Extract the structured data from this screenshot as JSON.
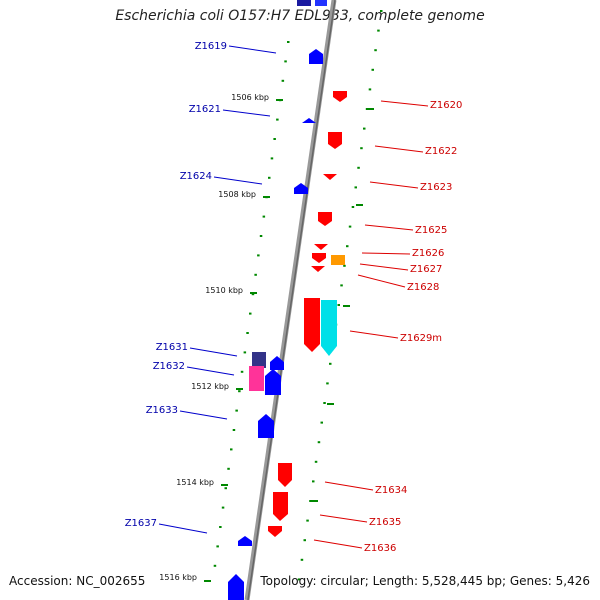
{
  "title": "Escherichia coli O157:H7 EDL933, complete genome",
  "footer": {
    "accession": "Accession: NC_002655",
    "topology": "Topology: circular; Length: 5,528,445 bp; Genes: 5,426"
  },
  "scale": {
    "labels": [
      "1506 kbp",
      "1508 kbp",
      "1510 kbp",
      "1512 kbp",
      "1514 kbp",
      "1516 kbp"
    ]
  },
  "colors": {
    "forward": "#ff0000",
    "reverse": "#0000ff",
    "orange": "#ff9900",
    "cyan": "#00e0e8",
    "magenta": "#ff3399",
    "navy": "#333388",
    "scale": "#008800",
    "backbone": "#888888"
  },
  "genes": {
    "left": [
      "Z1619",
      "Z1621",
      "Z1624",
      "Z1631",
      "Z1632",
      "Z1633",
      "Z1637"
    ],
    "right": [
      "Z1620",
      "Z1622",
      "Z1623",
      "Z1625",
      "Z1626",
      "Z1627",
      "Z1628",
      "Z1629m",
      "Z1634",
      "Z1635",
      "Z1636"
    ]
  }
}
